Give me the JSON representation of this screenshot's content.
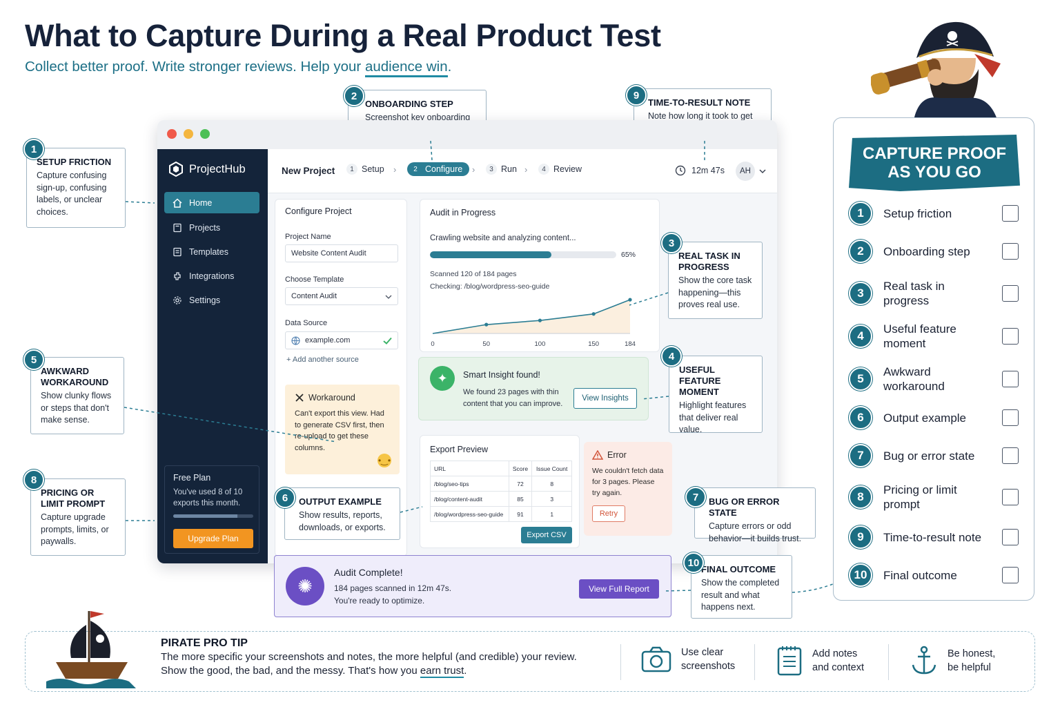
{
  "header": {
    "title": "What to Capture During a Real Product Test",
    "subtitle_before": "Collect better proof. Write stronger reviews. Help your ",
    "subtitle_underlined": "audience win",
    "subtitle_after": "."
  },
  "callouts": [
    {
      "num": "1",
      "title": "SETUP FRICTION",
      "text": "Capture confusing sign-up, confusing labels, or unclear choices."
    },
    {
      "num": "2",
      "title": "ONBOARDING STEP",
      "text": "Screenshot key onboarding steps or instructions."
    },
    {
      "num": "3",
      "title": "REAL TASK IN PROGRESS",
      "text": "Show the core task happening—this proves real use."
    },
    {
      "num": "4",
      "title": "USEFUL FEATURE MOMENT",
      "text": "Highlight features that deliver real value."
    },
    {
      "num": "5",
      "title": "AWKWARD WORKAROUND",
      "text": "Show clunky flows or steps that don't make sense."
    },
    {
      "num": "6",
      "title": "OUTPUT EXAMPLE",
      "text": "Show results, reports, downloads, or exports."
    },
    {
      "num": "7",
      "title": "BUG OR ERROR STATE",
      "text": "Capture errors or odd behavior—it builds trust."
    },
    {
      "num": "8",
      "title": "PRICING OR LIMIT PROMPT",
      "text": "Capture upgrade prompts, limits, or paywalls."
    },
    {
      "num": "9",
      "title": "TIME-TO-RESULT NOTE",
      "text": "Note how long it took to get from start to result."
    },
    {
      "num": "10",
      "title": "FINAL OUTCOME",
      "text": "Show the completed result and what happens next."
    }
  ],
  "app": {
    "brand": "ProjectHub",
    "nav": [
      {
        "label": "Home",
        "icon": "home-icon"
      },
      {
        "label": "Projects",
        "icon": "projects-icon"
      },
      {
        "label": "Templates",
        "icon": "templates-icon"
      },
      {
        "label": "Integrations",
        "icon": "integrations-icon"
      },
      {
        "label": "Settings",
        "icon": "gear-icon"
      }
    ],
    "plan": {
      "name": "Free Plan",
      "desc": "You've used 8 of 10 exports this month.",
      "used_fraction": 0.8,
      "upgrade": "Upgrade Plan"
    },
    "topbar": {
      "title": "New Project",
      "steps": [
        {
          "n": "1",
          "label": "Setup"
        },
        {
          "n": "2",
          "label": "Configure"
        },
        {
          "n": "3",
          "label": "Run"
        },
        {
          "n": "4",
          "label": "Review"
        }
      ],
      "timer": "12m 47s",
      "avatar": "AH"
    },
    "configure": {
      "title": "Configure Project",
      "project_name_label": "Project Name",
      "project_name_value": "Website Content Audit",
      "template_label": "Choose Template",
      "template_value": "Content Audit",
      "source_label": "Data Source",
      "source_value": "example.com",
      "add_source": "Add another source"
    },
    "workaround": {
      "title": "Workaround",
      "text": "Can't export this view. Had to generate CSV first, then re-upload to get these columns."
    },
    "audit": {
      "title": "Audit in Progress",
      "status": "Crawling website and analyzing content...",
      "progress_percent": 65,
      "progress_label": "65%",
      "scanned": "Scanned 120 of 184 pages",
      "checking": "Checking: /blog/wordpress-seo-guide"
    },
    "insight": {
      "title": "Smart Insight found!",
      "text": "We found 23 pages with thin content that you can improve.",
      "button": "View Insights"
    },
    "export": {
      "title": "Export Preview",
      "headers": [
        "URL",
        "Score",
        "Issue Count"
      ],
      "rows": [
        [
          "/blog/seo-tips",
          "72",
          "8"
        ],
        [
          "/blog/content-audit",
          "85",
          "3"
        ],
        [
          "/blog/wordpress-seo-guide",
          "91",
          "1"
        ]
      ],
      "button": "Export CSV"
    },
    "error": {
      "title": "Error",
      "text": "We couldn't fetch data for 3 pages. Please try again.",
      "button": "Retry"
    },
    "complete": {
      "title": "Audit Complete!",
      "line1": "184 pages scanned in 12m 47s.",
      "line2": "You're ready to optimize.",
      "button": "View Full Report"
    }
  },
  "chart_data": {
    "type": "line",
    "x": [
      0,
      50,
      100,
      150,
      184
    ],
    "xticks": [
      "0",
      "50",
      "100",
      "150",
      "184"
    ],
    "series": [
      {
        "values": [
          0,
          15,
          22,
          33,
          57
        ]
      }
    ],
    "ylim": [
      0,
      70
    ],
    "grid": false
  },
  "checklist": {
    "title_line1": "CAPTURE PROOF",
    "title_line2": "AS YOU GO",
    "items": [
      {
        "num": "1",
        "label": "Setup friction"
      },
      {
        "num": "2",
        "label": "Onboarding step"
      },
      {
        "num": "3",
        "label": "Real task in progress"
      },
      {
        "num": "4",
        "label": "Useful feature moment"
      },
      {
        "num": "5",
        "label": "Awkward workaround"
      },
      {
        "num": "6",
        "label": "Output example"
      },
      {
        "num": "7",
        "label": "Bug or error state"
      },
      {
        "num": "8",
        "label": "Pricing or limit prompt"
      },
      {
        "num": "9",
        "label": "Time-to-result note"
      },
      {
        "num": "10",
        "label": "Final outcome"
      }
    ]
  },
  "tip": {
    "title": "PIRATE PRO TIP",
    "line1": "The more specific your screenshots and notes, the more helpful (and credible) your review.",
    "line2_before": "Show the good, the bad, and the messy. That's how you ",
    "line2_underlined": "earn trust",
    "line2_after": ".",
    "features": [
      {
        "icon": "camera-icon",
        "text": "Use clear screenshots"
      },
      {
        "icon": "notes-icon",
        "text": "Add notes and context"
      },
      {
        "icon": "anchor-icon",
        "text": "Be honest, be helpful"
      }
    ]
  },
  "colors": {
    "accent": "#1c6d82",
    "sidebar": "#14243a",
    "upgrade": "#f29521",
    "insight": "#3bb368",
    "complete": "#6b4fc4"
  }
}
